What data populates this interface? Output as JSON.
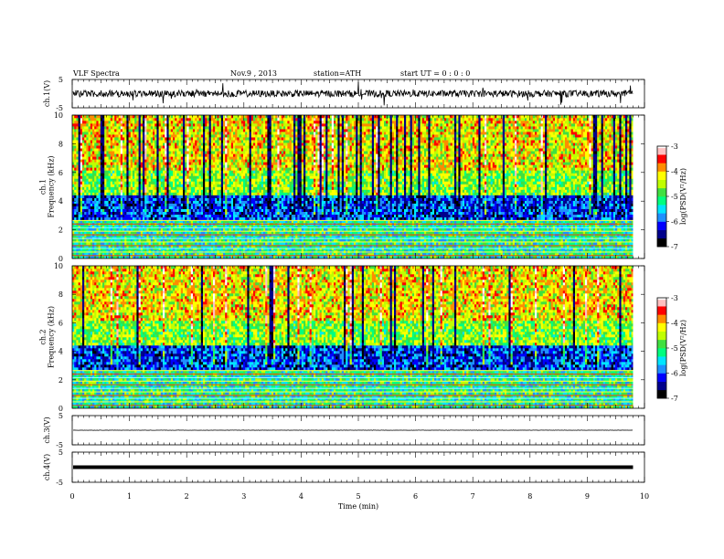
{
  "header": {
    "title": "VLF  Spectra",
    "date": "Nov.9  , 2013",
    "station": "station=ATH",
    "start": "start  UT  =   0  : 0  : 0"
  },
  "colors": {
    "spectrogram_scale": [
      "#000000",
      "#00008b",
      "#0000ff",
      "#1e90ff",
      "#00e5ff",
      "#00ff7f",
      "#40e040",
      "#c0ff00",
      "#ffff00",
      "#ff8c00",
      "#ff0000",
      "#ffc0c0",
      "#ffffff"
    ]
  },
  "chart_data": [
    {
      "type": "line",
      "name": "ch1-waveform",
      "ylabel": "ch.1(V)",
      "ylim": [
        -5,
        5
      ],
      "yticks": [
        "5",
        "-5"
      ],
      "xlim": [
        0,
        10
      ],
      "baseline": 0,
      "noise_amplitude": 1.2
    },
    {
      "type": "heatmap",
      "name": "ch1-spectrogram",
      "ylabel": "ch.1\nFrequency  (kHz)",
      "ylim": [
        0,
        10
      ],
      "yticks": [
        "0",
        "2",
        "4",
        "6",
        "8",
        "10"
      ],
      "xlim": [
        0,
        10
      ],
      "data_end": 9.8,
      "colorbar": {
        "label": "log(PSD(V²/Hz)",
        "range": [
          -7,
          -3
        ],
        "ticks": [
          "-3",
          "-4",
          "-5",
          "-6",
          "-7"
        ]
      }
    },
    {
      "type": "heatmap",
      "name": "ch2-spectrogram",
      "ylabel": "ch.2\nFrequency  (kHz)",
      "ylim": [
        0,
        10
      ],
      "yticks": [
        "0",
        "2",
        "4",
        "6",
        "8",
        "10"
      ],
      "xlim": [
        0,
        10
      ],
      "data_end": 9.8,
      "colorbar": {
        "label": "log(PSD(V²/Hz)",
        "range": [
          -7,
          -3
        ],
        "ticks": [
          "-3",
          "-4",
          "-5",
          "-6",
          "-7"
        ]
      }
    },
    {
      "type": "line",
      "name": "ch3-waveform",
      "ylabel": "ch.3(V)",
      "ylim": [
        -5,
        5
      ],
      "yticks": [
        "5",
        "-5"
      ],
      "xlim": [
        0,
        10
      ],
      "baseline": 0,
      "noise_amplitude": 0.05
    },
    {
      "type": "line",
      "name": "ch4-waveform",
      "ylabel": "ch.4(V)",
      "ylim": [
        -5,
        5
      ],
      "yticks": [
        "5",
        "-5"
      ],
      "xlim": [
        0,
        10
      ],
      "baseline": 0,
      "noise_amplitude": 0.3
    }
  ],
  "xaxis": {
    "label": "Time  (min)",
    "ticks": [
      "0",
      "1",
      "2",
      "3",
      "4",
      "5",
      "6",
      "7",
      "8",
      "9",
      "10"
    ]
  }
}
